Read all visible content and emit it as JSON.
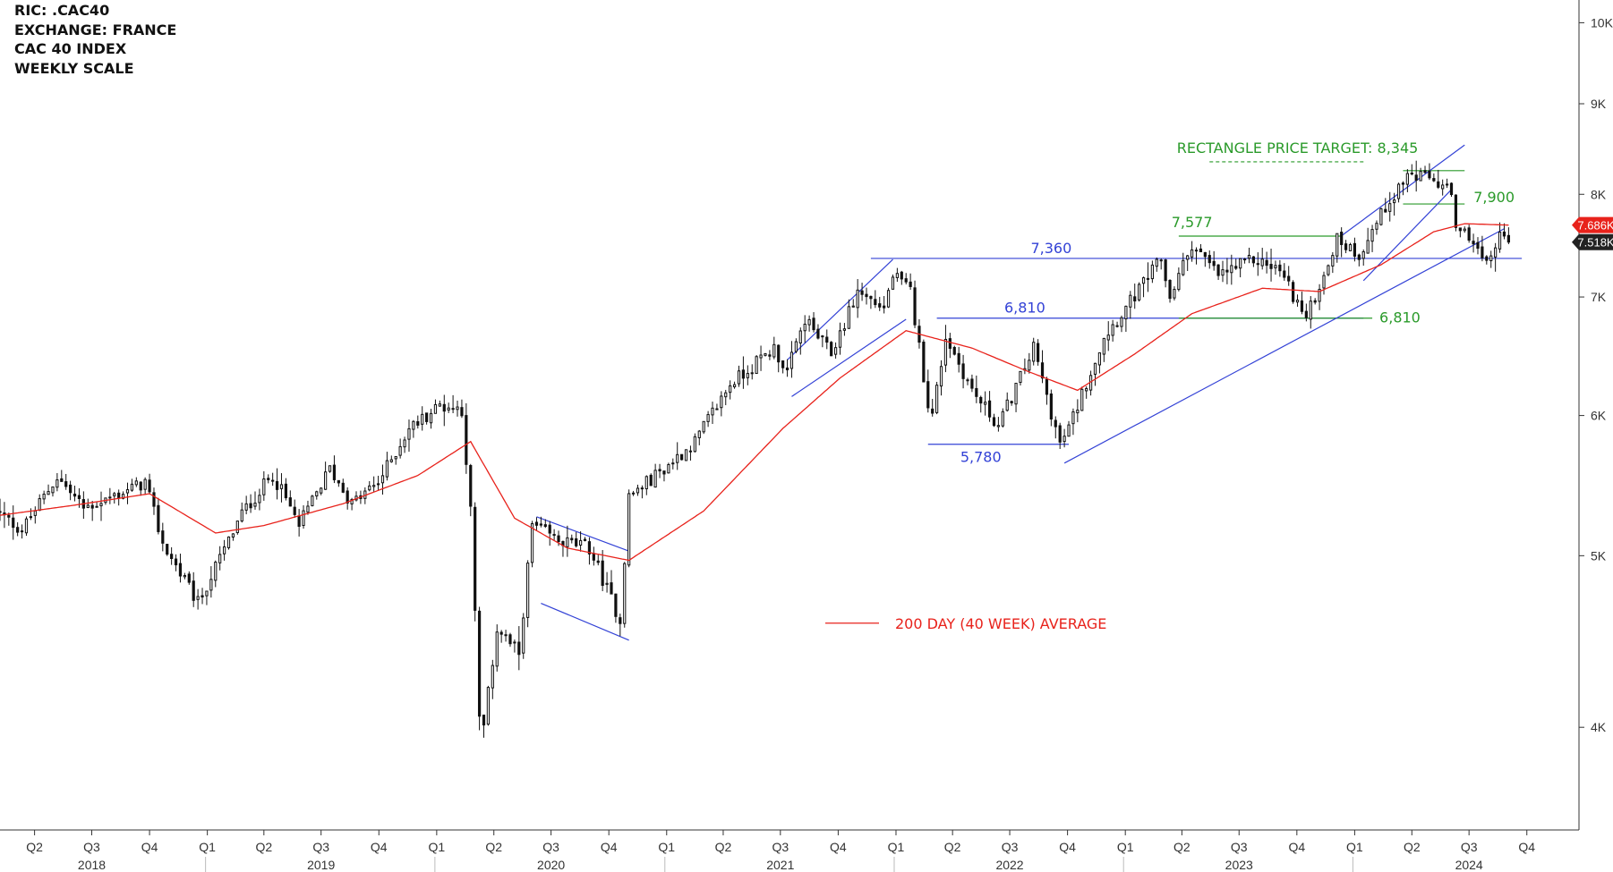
{
  "header": {
    "ric": "RIC: .CAC40",
    "exchange": "EXCHANGE: FRANCE",
    "index": "CAC 40 INDEX",
    "scale": "WEEKLY SCALE"
  },
  "chart_data": {
    "type": "candlestick",
    "title": "CAC 40 INDEX",
    "y_scale": "log",
    "ylim": [
      3500,
      10300
    ],
    "y_ticks": [
      {
        "value": 4000,
        "label": "4K"
      },
      {
        "value": 5000,
        "label": "5K"
      },
      {
        "value": 6000,
        "label": "6K"
      },
      {
        "value": 7000,
        "label": "7K"
      },
      {
        "value": 8000,
        "label": "8K"
      },
      {
        "value": 9000,
        "label": "9K"
      },
      {
        "value": 10000,
        "label": "10K"
      }
    ],
    "x_range": [
      "2018-02-05",
      "2024-12-23"
    ],
    "x_ticks": [
      {
        "date": "2018-04-01",
        "label": "Q2"
      },
      {
        "date": "2018-07-01",
        "label": "Q3"
      },
      {
        "date": "2018-10-01",
        "label": "Q4"
      },
      {
        "date": "2019-01-01",
        "label": "Q1"
      },
      {
        "date": "2019-04-01",
        "label": "Q2"
      },
      {
        "date": "2019-07-01",
        "label": "Q3"
      },
      {
        "date": "2019-10-01",
        "label": "Q4"
      },
      {
        "date": "2020-01-01",
        "label": "Q1"
      },
      {
        "date": "2020-04-01",
        "label": "Q2"
      },
      {
        "date": "2020-07-01",
        "label": "Q3"
      },
      {
        "date": "2020-10-01",
        "label": "Q4"
      },
      {
        "date": "2021-01-01",
        "label": "Q1"
      },
      {
        "date": "2021-04-01",
        "label": "Q2"
      },
      {
        "date": "2021-07-01",
        "label": "Q3"
      },
      {
        "date": "2021-10-01",
        "label": "Q4"
      },
      {
        "date": "2022-01-01",
        "label": "Q1"
      },
      {
        "date": "2022-04-01",
        "label": "Q2"
      },
      {
        "date": "2022-07-01",
        "label": "Q3"
      },
      {
        "date": "2022-10-01",
        "label": "Q4"
      },
      {
        "date": "2023-01-01",
        "label": "Q1"
      },
      {
        "date": "2023-04-01",
        "label": "Q2"
      },
      {
        "date": "2023-07-01",
        "label": "Q3"
      },
      {
        "date": "2023-10-01",
        "label": "Q4"
      },
      {
        "date": "2024-01-01",
        "label": "Q1"
      },
      {
        "date": "2024-04-01",
        "label": "Q2"
      },
      {
        "date": "2024-07-01",
        "label": "Q3"
      },
      {
        "date": "2024-10-01",
        "label": "Q4"
      }
    ],
    "year_labels": [
      {
        "date": "2018-07-01",
        "label": "2018"
      },
      {
        "date": "2019-07-01",
        "label": "2019"
      },
      {
        "date": "2020-07-01",
        "label": "2020"
      },
      {
        "date": "2021-07-01",
        "label": "2021"
      },
      {
        "date": "2022-07-01",
        "label": "2022"
      },
      {
        "date": "2023-07-01",
        "label": "2023"
      },
      {
        "date": "2024-07-01",
        "label": "2024"
      }
    ],
    "year_separators": [
      "2019-01-01",
      "2020-01-01",
      "2021-01-01",
      "2022-01-01",
      "2023-01-01",
      "2024-01-01"
    ],
    "price_keypoints": [
      [
        "2018-02-05",
        5300
      ],
      [
        "2018-03-19",
        5170
      ],
      [
        "2018-05-14",
        5540
      ],
      [
        "2018-06-25",
        5320
      ],
      [
        "2018-08-27",
        5430
      ],
      [
        "2018-10-01",
        5500
      ],
      [
        "2018-10-29",
        5080
      ],
      [
        "2018-12-24",
        4700
      ],
      [
        "2019-03-04",
        5280
      ],
      [
        "2019-04-22",
        5560
      ],
      [
        "2019-06-03",
        5200
      ],
      [
        "2019-07-22",
        5600
      ],
      [
        "2019-08-26",
        5350
      ],
      [
        "2019-10-07",
        5500
      ],
      [
        "2019-11-25",
        5900
      ],
      [
        "2020-01-13",
        6080
      ],
      [
        "2020-02-17",
        6050
      ],
      [
        "2020-03-02",
        5300
      ],
      [
        "2020-03-16",
        4050
      ],
      [
        "2020-03-23",
        4000
      ],
      [
        "2020-04-13",
        4550
      ],
      [
        "2020-05-18",
        4400
      ],
      [
        "2020-06-08",
        5200
      ],
      [
        "2020-07-20",
        5100
      ],
      [
        "2020-09-07",
        5050
      ],
      [
        "2020-10-26",
        4600
      ],
      [
        "2020-11-09",
        5400
      ],
      [
        "2021-01-04",
        5600
      ],
      [
        "2021-02-22",
        5800
      ],
      [
        "2021-04-19",
        6250
      ],
      [
        "2021-06-28",
        6550
      ],
      [
        "2021-07-19",
        6350
      ],
      [
        "2021-08-16",
        6800
      ],
      [
        "2021-09-27",
        6500
      ],
      [
        "2021-11-08",
        7050
      ],
      [
        "2021-12-20",
        6900
      ],
      [
        "2022-01-03",
        7200
      ],
      [
        "2022-01-31",
        7050
      ],
      [
        "2022-02-28",
        6100
      ],
      [
        "2022-03-07",
        6000
      ],
      [
        "2022-03-28",
        6650
      ],
      [
        "2022-05-09",
        6200
      ],
      [
        "2022-06-20",
        5920
      ],
      [
        "2022-08-15",
        6550
      ],
      [
        "2022-09-26",
        5780
      ],
      [
        "2022-10-10",
        5900
      ],
      [
        "2022-12-05",
        6650
      ],
      [
        "2023-01-09",
        6900
      ],
      [
        "2023-03-06",
        7350
      ],
      [
        "2023-03-20",
        7000
      ],
      [
        "2023-04-24",
        7500
      ],
      [
        "2023-06-05",
        7200
      ],
      [
        "2023-07-31",
        7350
      ],
      [
        "2023-09-11",
        7250
      ],
      [
        "2023-10-23",
        6800
      ],
      [
        "2023-12-11",
        7550
      ],
      [
        "2024-01-15",
        7400
      ],
      [
        "2024-03-04",
        7950
      ],
      [
        "2024-04-01",
        8200
      ],
      [
        "2024-05-13",
        8150
      ],
      [
        "2024-06-10",
        8000
      ],
      [
        "2024-06-17",
        7600
      ],
      [
        "2024-07-08",
        7600
      ],
      [
        "2024-08-05",
        7280
      ],
      [
        "2024-08-26",
        7600
      ],
      [
        "2024-09-02",
        7518
      ]
    ],
    "moving_average_keypoints": [
      [
        "2018-02-05",
        5270
      ],
      [
        "2018-06-04",
        5340
      ],
      [
        "2018-10-01",
        5420
      ],
      [
        "2019-01-14",
        5150
      ],
      [
        "2019-04-01",
        5200
      ],
      [
        "2019-08-05",
        5350
      ],
      [
        "2019-12-02",
        5550
      ],
      [
        "2020-02-24",
        5800
      ],
      [
        "2020-05-04",
        5250
      ],
      [
        "2020-07-27",
        5050
      ],
      [
        "2020-11-02",
        4970
      ],
      [
        "2021-03-01",
        5300
      ],
      [
        "2021-07-05",
        5900
      ],
      [
        "2021-10-04",
        6300
      ],
      [
        "2022-01-17",
        6700
      ],
      [
        "2022-05-02",
        6550
      ],
      [
        "2022-08-01",
        6350
      ],
      [
        "2022-10-17",
        6200
      ],
      [
        "2023-01-16",
        6500
      ],
      [
        "2023-04-17",
        6850
      ],
      [
        "2023-08-07",
        7080
      ],
      [
        "2023-11-06",
        7050
      ],
      [
        "2024-02-12",
        7300
      ],
      [
        "2024-05-06",
        7620
      ],
      [
        "2024-06-24",
        7700
      ],
      [
        "2024-09-02",
        7686
      ]
    ],
    "series": [
      {
        "name": "200 DAY (40 WEEK) AVERAGE",
        "color": "#e8221b"
      }
    ],
    "last_price": {
      "value": 7518,
      "label": "7.518K"
    },
    "last_average": {
      "value": 7686,
      "label": "7.686K"
    },
    "annotations": {
      "horizontal_levels": [
        {
          "label": "7,360",
          "value": 7360,
          "from": "2021-11-22",
          "to": "2024-09-23",
          "color": "#3342d6"
        },
        {
          "label": "6,810",
          "value": 6810,
          "from": "2022-03-07",
          "to": "2024-01-15",
          "color": "#3342d6"
        },
        {
          "label": "5,780",
          "value": 5780,
          "from": "2022-02-21",
          "to": "2022-10-03",
          "color": "#3342d6"
        },
        {
          "label": "7,577",
          "value": 7577,
          "from": "2023-03-27",
          "to": "2023-12-11",
          "color": "#2a9a2a"
        },
        {
          "label": "6,810",
          "value": 6810,
          "from": "2023-03-27",
          "to": "2024-01-29",
          "color": "#2a9a2a"
        },
        {
          "label": "7,900",
          "value": 7900,
          "from": "2024-03-18",
          "to": "2024-06-24",
          "color": "#2a9a2a"
        },
        {
          "value": 8250,
          "from": "2024-03-18",
          "to": "2024-06-24",
          "color": "#2a9a2a"
        }
      ],
      "target": {
        "label": "RECTANGLE PRICE TARGET: 8,345",
        "value": 8345,
        "from": "2023-05-15",
        "to": "2024-01-15",
        "color": "#2a9a2a"
      },
      "trend_lines": [
        {
          "points": [
            [
              "2021-07-12",
              6450
            ],
            [
              "2021-12-27",
              7350
            ]
          ],
          "color": "#3342d6"
        },
        {
          "points": [
            [
              "2021-07-19",
              6150
            ],
            [
              "2022-01-17",
              6800
            ]
          ],
          "color": "#3342d6"
        },
        {
          "points": [
            [
              "2020-06-08",
              5260
            ],
            [
              "2020-11-02",
              5030
            ]
          ],
          "color": "#3342d6"
        },
        {
          "points": [
            [
              "2020-06-15",
              4700
            ],
            [
              "2020-11-02",
              4480
            ]
          ],
          "color": "#3342d6"
        },
        {
          "points": [
            [
              "2022-09-26",
              5640
            ],
            [
              "2024-08-26",
              7650
            ]
          ],
          "color": "#3342d6"
        },
        {
          "points": [
            [
              "2023-12-11",
              7580
            ],
            [
              "2024-06-24",
              8530
            ]
          ],
          "color": "#3342d6"
        },
        {
          "points": [
            [
              "2024-01-15",
              7150
            ],
            [
              "2024-06-03",
              8050
            ]
          ],
          "color": "#3342d6"
        }
      ]
    },
    "legend": {
      "label": "200 DAY (40 WEEK) AVERAGE",
      "position": "center"
    }
  }
}
